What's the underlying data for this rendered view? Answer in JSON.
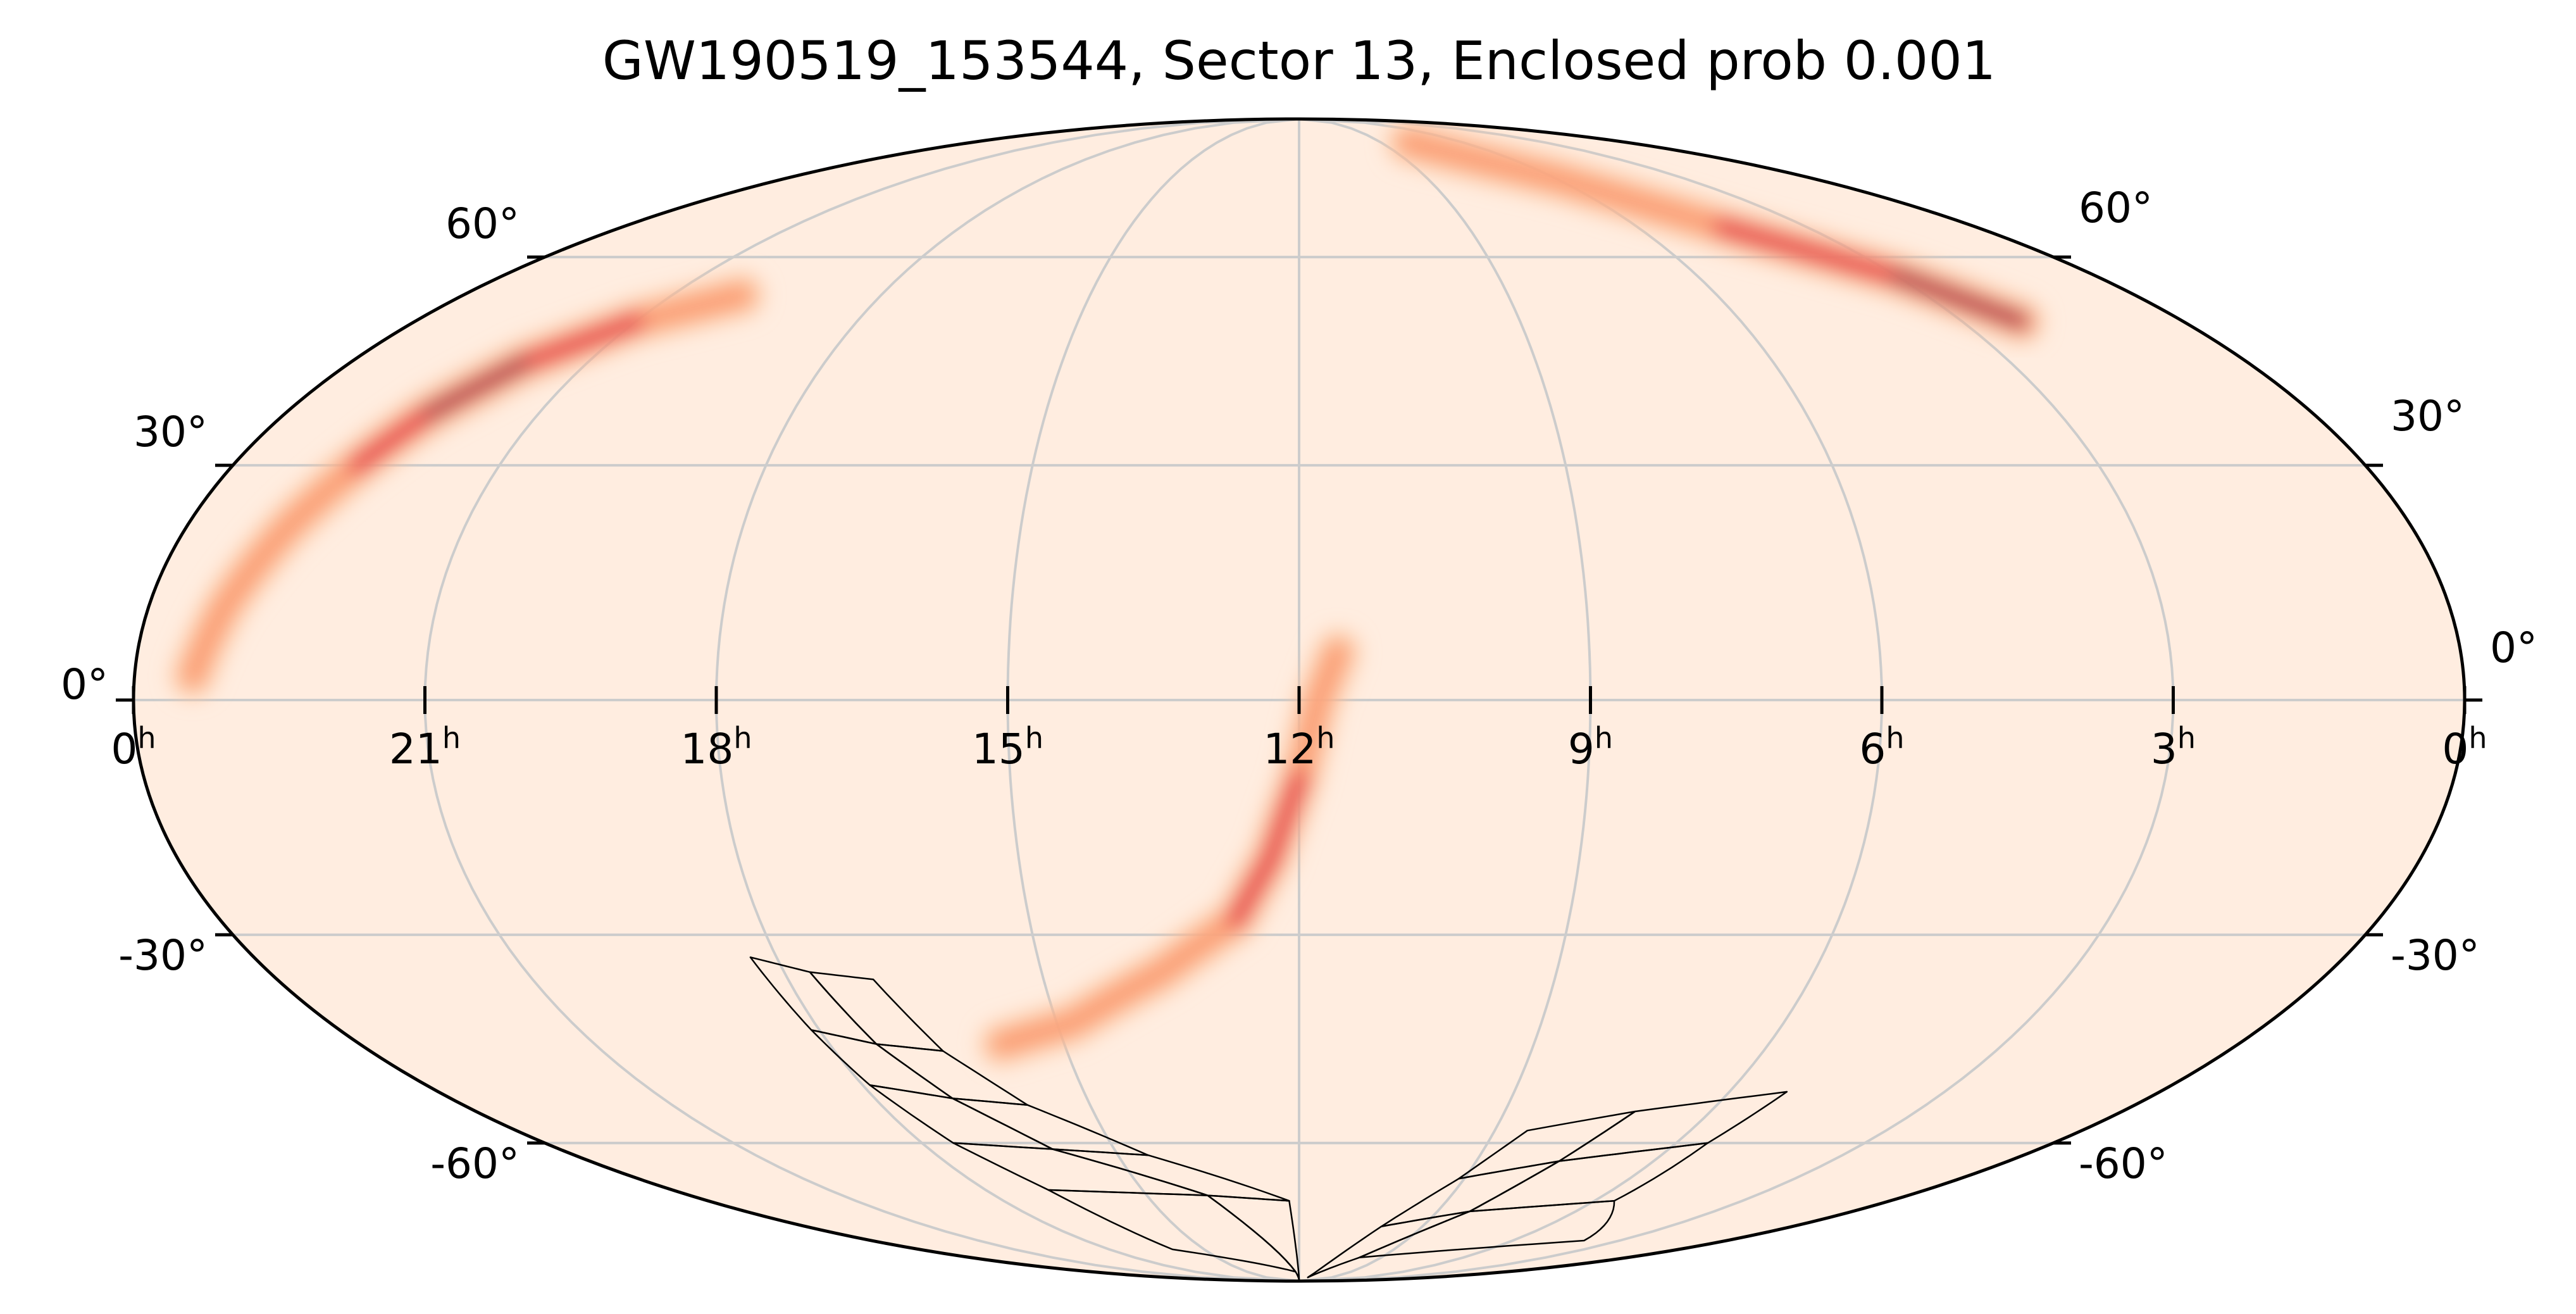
{
  "chart_data": {
    "type": "heatmap",
    "projection": "mollweide",
    "title": "GW190519_153544, Sector 13, Enclosed prob 0.001",
    "xlabel": "",
    "ylabel": "",
    "xlim_hours": [
      0,
      24
    ],
    "ylim_deg": [
      -90,
      90
    ],
    "ra_axis_reversed": true,
    "grid": true,
    "colormap": "orange-red-purple sequential",
    "ra_tick_labels": [
      {
        "hours": 24,
        "base": "0",
        "sup": "h"
      },
      {
        "hours": 21,
        "base": "21",
        "sup": "h"
      },
      {
        "hours": 18,
        "base": "18",
        "sup": "h"
      },
      {
        "hours": 15,
        "base": "15",
        "sup": "h"
      },
      {
        "hours": 12,
        "base": "12",
        "sup": "h"
      },
      {
        "hours": 9,
        "base": "9",
        "sup": "h"
      },
      {
        "hours": 6,
        "base": "6",
        "sup": "h"
      },
      {
        "hours": 3,
        "base": "3",
        "sup": "h"
      },
      {
        "hours": 0,
        "base": "0",
        "sup": "h"
      }
    ],
    "dec_tick_labels": [
      {
        "deg": 60,
        "text": "60°"
      },
      {
        "deg": 30,
        "text": "30°"
      },
      {
        "deg": 0,
        "text": "0°"
      },
      {
        "deg": -30,
        "text": "-30°"
      },
      {
        "deg": -60,
        "text": "-60°"
      }
    ],
    "probability_arcs": [
      {
        "name": "",
        "points_ra_dec": [
          [
            23.4,
            3
          ],
          [
            23.2,
            12
          ],
          [
            22.9,
            22
          ],
          [
            22.6,
            30
          ],
          [
            22.3,
            37
          ],
          [
            21.8,
            44
          ],
          [
            21.0,
            50
          ],
          [
            20.0,
            54
          ]
        ],
        "peak_dec": 38
      },
      {
        "name": "",
        "points_ra_dec": [
          [
            11.6,
            6
          ],
          [
            11.8,
            0
          ],
          [
            12.0,
            -10
          ],
          [
            12.3,
            -20
          ],
          [
            12.7,
            -28
          ],
          [
            13.6,
            -35
          ],
          [
            14.8,
            -42
          ],
          [
            15.8,
            -45
          ]
        ],
        "peak_dec": -20
      },
      {
        "name": "",
        "points_ra_dec": [
          [
            8.0,
            82
          ],
          [
            6.0,
            74
          ],
          [
            4.5,
            65
          ],
          [
            3.0,
            57
          ],
          [
            2.2,
            50
          ]
        ],
        "peak_dec": 55
      }
    ],
    "tess_sector_footprints": [
      {
        "ccd_corners_ra_dec": [
          [
            18.3,
            -33
          ],
          [
            17.7,
            -35
          ],
          [
            17.4,
            -45
          ],
          [
            18.1,
            -43
          ]
        ]
      },
      {
        "ccd_corners_ra_dec": [
          [
            17.7,
            -35
          ],
          [
            17.0,
            -36
          ],
          [
            16.6,
            -46
          ],
          [
            17.4,
            -45
          ]
        ]
      },
      {
        "ccd_corners_ra_dec": [
          [
            18.1,
            -43
          ],
          [
            17.4,
            -45
          ],
          [
            16.9,
            -53
          ],
          [
            17.9,
            -51
          ]
        ]
      },
      {
        "ccd_corners_ra_dec": [
          [
            17.4,
            -45
          ],
          [
            16.6,
            -46
          ],
          [
            15.9,
            -54
          ],
          [
            16.9,
            -53
          ]
        ]
      },
      {
        "ccd_corners_ra_dec": [
          [
            17.9,
            -51
          ],
          [
            16.9,
            -53
          ],
          [
            16.0,
            -61
          ],
          [
            17.5,
            -60
          ]
        ]
      },
      {
        "ccd_corners_ra_dec": [
          [
            16.9,
            -53
          ],
          [
            15.9,
            -54
          ],
          [
            14.5,
            -62
          ],
          [
            16.0,
            -61
          ]
        ]
      },
      {
        "ccd_corners_ra_dec": [
          [
            17.5,
            -60
          ],
          [
            16.0,
            -61
          ],
          [
            13.8,
            -69
          ],
          [
            16.8,
            -68
          ]
        ]
      },
      {
        "ccd_corners_ra_dec": [
          [
            16.0,
            -61
          ],
          [
            14.5,
            -62
          ],
          [
            12.2,
            -70
          ],
          [
            13.8,
            -69
          ]
        ]
      },
      {
        "ccd_corners_ra_dec": [
          [
            16.8,
            -68
          ],
          [
            13.8,
            -69
          ],
          [
            12.2,
            -86
          ],
          [
            16.0,
            -80
          ]
        ]
      },
      {
        "ccd_corners_ra_dec": [
          [
            13.8,
            -69
          ],
          [
            12.2,
            -70
          ],
          [
            12.0,
            -89
          ],
          [
            12.2,
            -86
          ]
        ]
      },
      {
        "ccd_corners_ra_dec": [
          [
            8.5,
            -58
          ],
          [
            7.1,
            -55
          ],
          [
            7.6,
            -63
          ],
          [
            9.1,
            -66
          ]
        ]
      },
      {
        "ccd_corners_ra_dec": [
          [
            7.1,
            -55
          ],
          [
            5.2,
            -52
          ],
          [
            5.5,
            -60
          ],
          [
            7.6,
            -63
          ]
        ]
      },
      {
        "ccd_corners_ra_dec": [
          [
            9.1,
            -66
          ],
          [
            7.6,
            -63
          ],
          [
            8.3,
            -72
          ],
          [
            10.0,
            -75
          ]
        ]
      },
      {
        "ccd_corners_ra_dec": [
          [
            7.6,
            -63
          ],
          [
            5.5,
            -60
          ],
          [
            5.6,
            -70
          ],
          [
            8.3,
            -72
          ]
        ]
      },
      {
        "ccd_corners_ra_dec": [
          [
            10.0,
            -75
          ],
          [
            8.3,
            -72
          ],
          [
            9.8,
            -82
          ],
          [
            11.2,
            -88
          ]
        ]
      },
      {
        "ccd_corners_ra_dec": [
          [
            8.3,
            -72
          ],
          [
            5.6,
            -70
          ],
          [
            4.0,
            -78
          ],
          [
            9.8,
            -82
          ]
        ]
      }
    ]
  }
}
